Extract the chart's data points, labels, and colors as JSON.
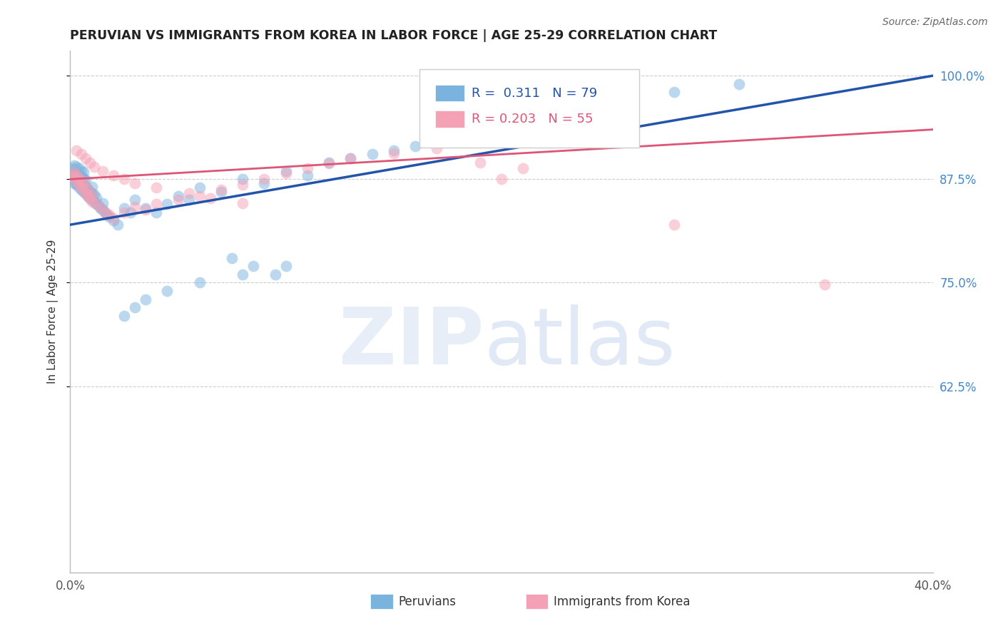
{
  "title": "PERUVIAN VS IMMIGRANTS FROM KOREA IN LABOR FORCE | AGE 25-29 CORRELATION CHART",
  "source": "Source: ZipAtlas.com",
  "ylabel": "In Labor Force | Age 25-29",
  "xlim": [
    0.0,
    0.4
  ],
  "ylim": [
    0.4,
    1.03
  ],
  "blue_R": 0.311,
  "blue_N": 79,
  "pink_R": 0.203,
  "pink_N": 55,
  "blue_color": "#7ab3de",
  "pink_color": "#f4a0b5",
  "blue_line_color": "#2255aa",
  "pink_line_color": "#dd5577",
  "legend_label_blue": "Peruvians",
  "legend_label_pink": "Immigrants from Korea",
  "blue_scatter_x": [
    0.001,
    0.001,
    0.001,
    0.002,
    0.002,
    0.002,
    0.002,
    0.003,
    0.003,
    0.003,
    0.003,
    0.003,
    0.004,
    0.004,
    0.004,
    0.004,
    0.005,
    0.005,
    0.005,
    0.005,
    0.006,
    0.006,
    0.006,
    0.006,
    0.007,
    0.007,
    0.007,
    0.008,
    0.008,
    0.009,
    0.009,
    0.01,
    0.01,
    0.01,
    0.011,
    0.011,
    0.012,
    0.012,
    0.013,
    0.014,
    0.015,
    0.015,
    0.016,
    0.017,
    0.018,
    0.02,
    0.022,
    0.025,
    0.028,
    0.03,
    0.035,
    0.04,
    0.045,
    0.05,
    0.055,
    0.06,
    0.07,
    0.08,
    0.09,
    0.1,
    0.11,
    0.12,
    0.13,
    0.15,
    0.16,
    0.17,
    0.075,
    0.085,
    0.095,
    0.14,
    0.03,
    0.025,
    0.035,
    0.045,
    0.06,
    0.08,
    0.1,
    0.28,
    0.31
  ],
  "blue_scatter_y": [
    0.875,
    0.882,
    0.888,
    0.87,
    0.878,
    0.885,
    0.892,
    0.868,
    0.875,
    0.882,
    0.89,
    0.87,
    0.865,
    0.872,
    0.88,
    0.888,
    0.862,
    0.87,
    0.878,
    0.885,
    0.86,
    0.868,
    0.876,
    0.884,
    0.858,
    0.866,
    0.874,
    0.855,
    0.863,
    0.852,
    0.86,
    0.85,
    0.858,
    0.866,
    0.848,
    0.856,
    0.845,
    0.853,
    0.843,
    0.84,
    0.838,
    0.846,
    0.835,
    0.832,
    0.83,
    0.825,
    0.82,
    0.84,
    0.835,
    0.85,
    0.84,
    0.835,
    0.845,
    0.855,
    0.85,
    0.865,
    0.86,
    0.875,
    0.87,
    0.885,
    0.88,
    0.895,
    0.9,
    0.91,
    0.915,
    0.92,
    0.78,
    0.77,
    0.76,
    0.905,
    0.72,
    0.71,
    0.73,
    0.74,
    0.75,
    0.76,
    0.77,
    0.98,
    0.99
  ],
  "pink_scatter_x": [
    0.001,
    0.002,
    0.002,
    0.003,
    0.003,
    0.004,
    0.004,
    0.005,
    0.005,
    0.006,
    0.006,
    0.007,
    0.008,
    0.008,
    0.009,
    0.01,
    0.01,
    0.012,
    0.014,
    0.016,
    0.018,
    0.02,
    0.025,
    0.03,
    0.035,
    0.04,
    0.05,
    0.06,
    0.07,
    0.08,
    0.09,
    0.1,
    0.11,
    0.12,
    0.13,
    0.15,
    0.17,
    0.19,
    0.21,
    0.003,
    0.005,
    0.007,
    0.009,
    0.011,
    0.015,
    0.02,
    0.025,
    0.03,
    0.04,
    0.055,
    0.065,
    0.08,
    0.35,
    0.28,
    0.2
  ],
  "pink_scatter_y": [
    0.88,
    0.876,
    0.884,
    0.872,
    0.88,
    0.868,
    0.876,
    0.865,
    0.873,
    0.862,
    0.87,
    0.858,
    0.855,
    0.863,
    0.852,
    0.848,
    0.856,
    0.845,
    0.84,
    0.836,
    0.832,
    0.828,
    0.835,
    0.842,
    0.838,
    0.845,
    0.85,
    0.855,
    0.862,
    0.868,
    0.875,
    0.882,
    0.888,
    0.894,
    0.9,
    0.906,
    0.912,
    0.895,
    0.888,
    0.91,
    0.905,
    0.9,
    0.895,
    0.89,
    0.885,
    0.88,
    0.875,
    0.87,
    0.865,
    0.858,
    0.852,
    0.846,
    0.748,
    0.82,
    0.875
  ]
}
